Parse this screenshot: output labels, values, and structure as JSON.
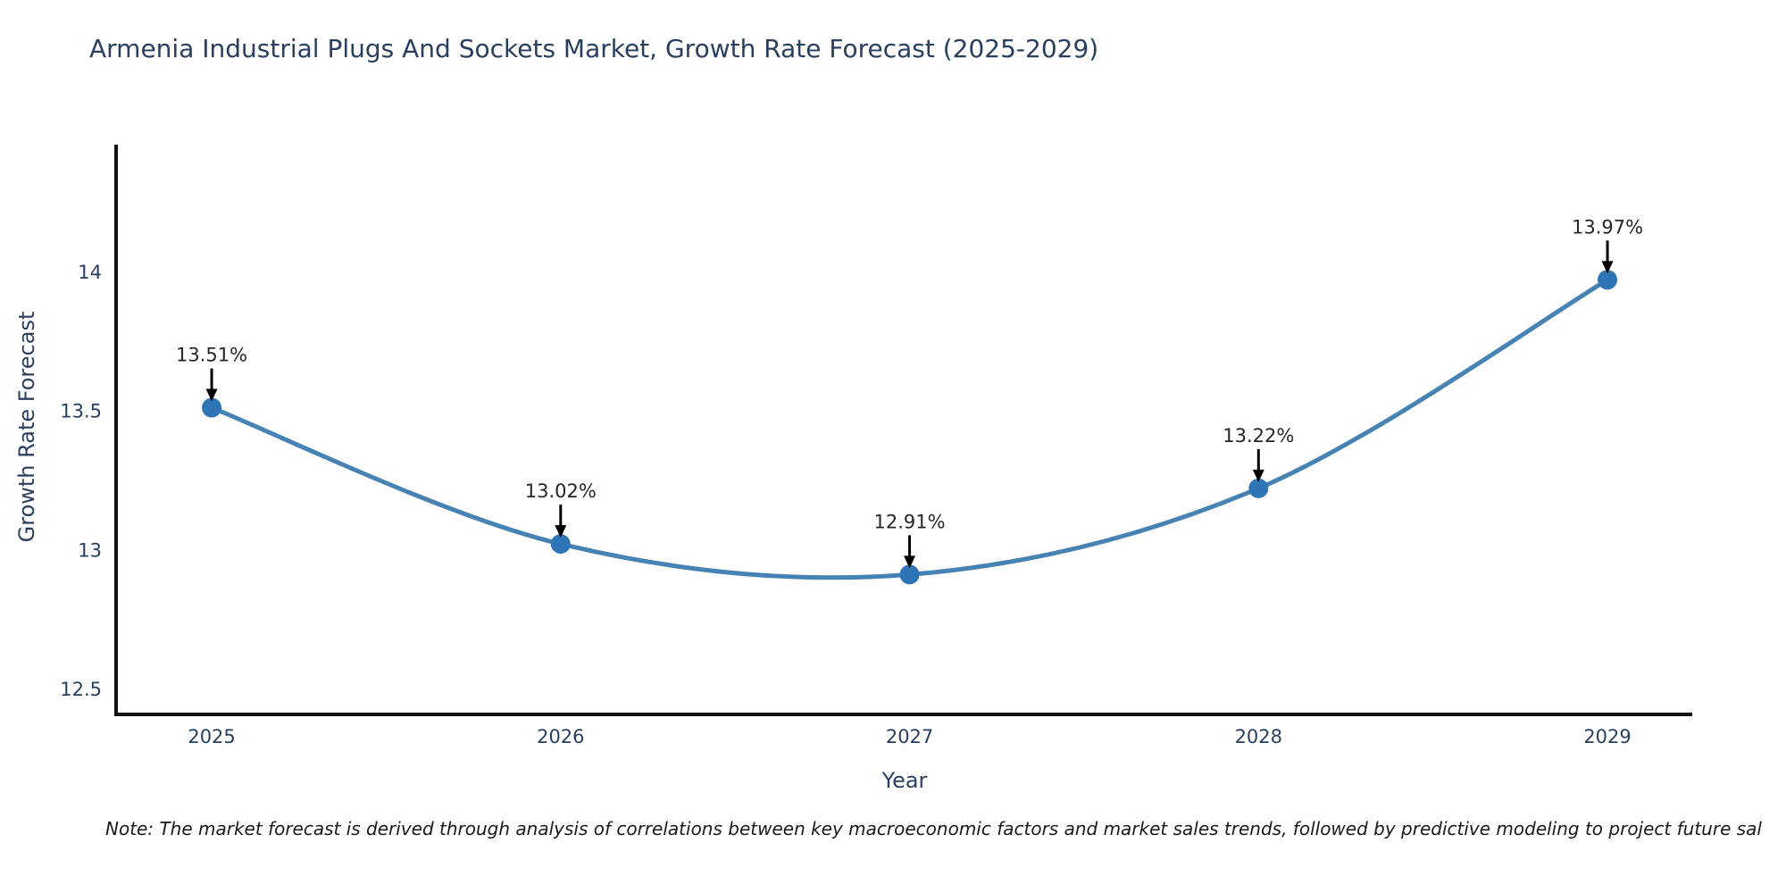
{
  "note": {
    "text": "Note: The market forecast is derived through analysis of correlations between key macroeconomic factors and market sales trends, followed by predictive modeling to project future sal"
  },
  "chart_data": {
    "type": "line",
    "line_shape": "spline",
    "title": "Armenia Industrial Plugs And Sockets Market, Growth Rate Forecast (2025-2029)",
    "xlabel": "Year",
    "ylabel": "Growth Rate Forecast",
    "x": [
      2025,
      2026,
      2027,
      2028,
      2029
    ],
    "series": [
      {
        "name": "Growth Rate Forecast",
        "values": [
          13.51,
          13.02,
          12.91,
          13.22,
          13.97
        ]
      }
    ],
    "point_labels": [
      "13.51%",
      "13.02%",
      "12.91%",
      "13.22%",
      "13.97%"
    ],
    "xticks": [
      2025,
      2026,
      2027,
      2028,
      2029
    ],
    "xticklabels": [
      "2025",
      "2026",
      "2027",
      "2028",
      "2029"
    ],
    "yticks": [
      12.5,
      13.0,
      13.5,
      14.0
    ],
    "yticklabels": [
      "12.5",
      "13",
      "13.5",
      "14"
    ],
    "xlim": [
      2024.726,
      2029.243
    ],
    "ylim": [
      12.407,
      14.456
    ],
    "grid": false,
    "legend": "none",
    "colors": {
      "line": "#4682b4",
      "marker": "#2e75b6",
      "axis": "#111111",
      "tick_label": "#2a3f5f",
      "title": "#2a3f5f",
      "annotation": "#000000",
      "annotation_text": "#262626"
    }
  }
}
